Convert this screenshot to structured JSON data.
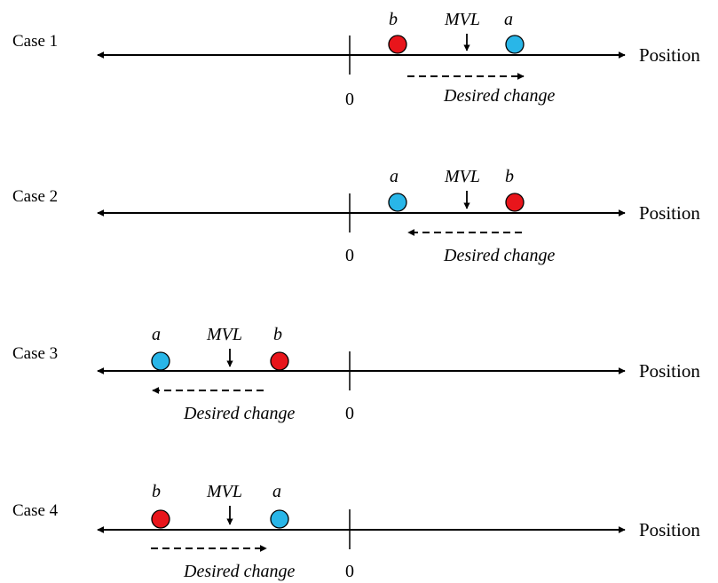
{
  "colors": {
    "point_a": "#29B6E8",
    "point_b": "#E8151B",
    "line": "#000000"
  },
  "icons": {
    "axis_arrow": "double-headed-arrow",
    "mvl_marker": "down-arrow",
    "desired_change": "dashed-arrow"
  },
  "panels": [
    {
      "case_label": "Case 1",
      "axis_label": "Position",
      "zero_label": "0",
      "mvl_label": "MVL",
      "left_point": {
        "label": "b",
        "color": "red"
      },
      "right_point": {
        "label": "a",
        "color": "blue"
      },
      "change_label": "Desired change",
      "change_direction": "right"
    },
    {
      "case_label": "Case 2",
      "axis_label": "Position",
      "zero_label": "0",
      "mvl_label": "MVL",
      "left_point": {
        "label": "a",
        "color": "blue"
      },
      "right_point": {
        "label": "b",
        "color": "red"
      },
      "change_label": "Desired change",
      "change_direction": "left"
    },
    {
      "case_label": "Case 3",
      "axis_label": "Position",
      "zero_label": "0",
      "mvl_label": "MVL",
      "left_point": {
        "label": "a",
        "color": "blue"
      },
      "right_point": {
        "label": "b",
        "color": "red"
      },
      "change_label": "Desired change",
      "change_direction": "left"
    },
    {
      "case_label": "Case 4",
      "axis_label": "Position",
      "zero_label": "0",
      "mvl_label": "MVL",
      "left_point": {
        "label": "b",
        "color": "red"
      },
      "right_point": {
        "label": "a",
        "color": "blue"
      },
      "change_label": "Desired change",
      "change_direction": "right"
    }
  ]
}
